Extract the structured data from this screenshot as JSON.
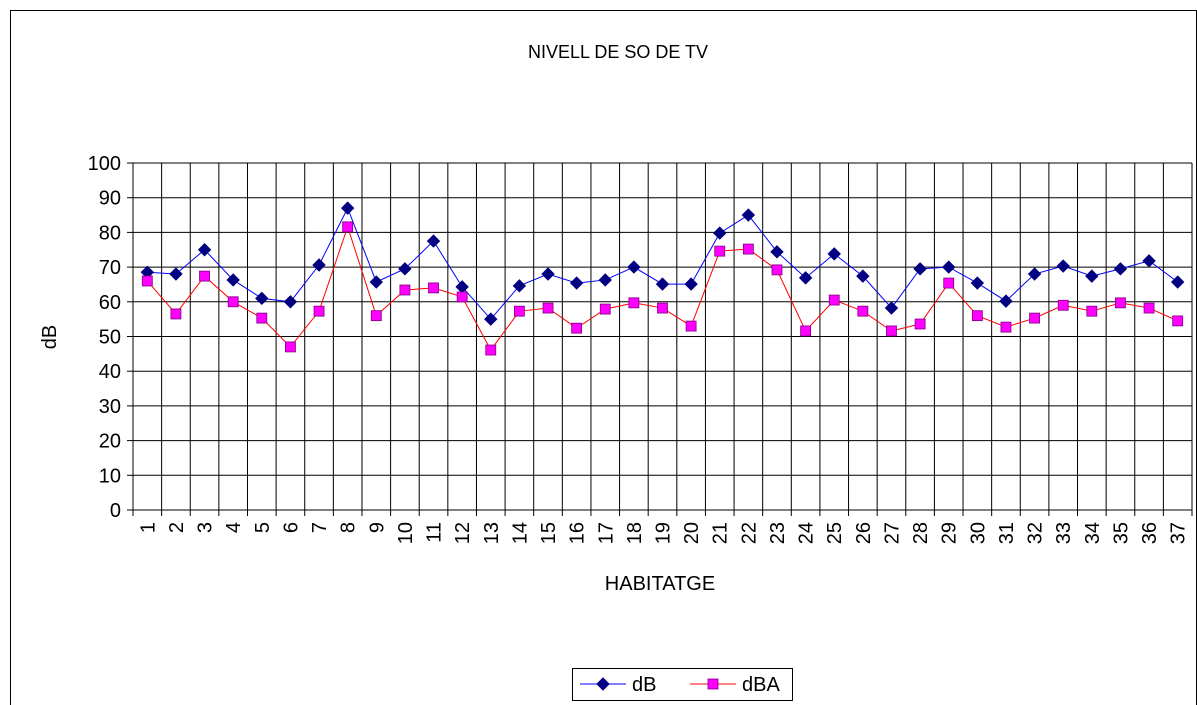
{
  "chart_data": {
    "type": "line",
    "title": "NIVELL DE SO DE TV",
    "x_label": "HABITATGE",
    "y_label": "dB",
    "categories": [
      "1",
      "2",
      "3",
      "4",
      "5",
      "6",
      "7",
      "8",
      "9",
      "10",
      "11",
      "12",
      "13",
      "14",
      "15",
      "16",
      "17",
      "18",
      "19",
      "20",
      "21",
      "22",
      "23",
      "24",
      "25",
      "26",
      "27",
      "28",
      "29",
      "30",
      "31",
      "32",
      "33",
      "34",
      "35",
      "36",
      "37"
    ],
    "series": [
      {
        "name": "dB",
        "color": "#0000ff",
        "marker_color": "#000080",
        "marker": "diamond",
        "values": [
          68.5,
          68,
          75,
          66.3,
          61,
          60,
          70.6,
          87,
          65.7,
          69.5,
          77.5,
          64.3,
          55,
          64.6,
          68,
          65.4,
          66.3,
          70,
          65.1,
          65.1,
          79.8,
          85,
          74.4,
          66.9,
          73.8,
          67.4,
          58.2,
          69.5,
          70,
          65.4,
          60.2,
          68,
          70.3,
          67.4,
          69.5,
          71.8,
          65.7
        ]
      },
      {
        "name": "dBA",
        "color": "#ff0000",
        "marker_color": "#ff00ff",
        "marker": "square",
        "values": [
          66,
          56.5,
          67.4,
          60,
          55.3,
          47,
          57.3,
          81.6,
          56,
          63.4,
          64,
          61.4,
          46.1,
          57.3,
          58.2,
          52.4,
          57.9,
          59.7,
          58.2,
          53,
          74.6,
          75.2,
          69.2,
          51.6,
          60.5,
          57.3,
          51.6,
          53.6,
          65.4,
          56,
          52.7,
          55.3,
          59,
          57.3,
          59.7,
          58.2,
          54.5
        ]
      }
    ],
    "ylim": [
      0,
      100
    ],
    "yticks": [
      0,
      10,
      20,
      30,
      40,
      50,
      60,
      70,
      80,
      90,
      100
    ],
    "grid": true,
    "legend": "bottom"
  }
}
